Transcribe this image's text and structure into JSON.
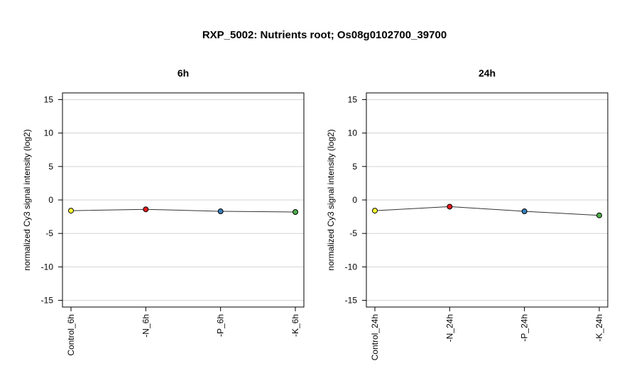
{
  "title": "RXP_5002: Nutrients root; Os08g0102700_39700",
  "chart_data": [
    {
      "type": "line",
      "title": "6h",
      "ylabel": "normalized Cy3 signal intensity (log2)",
      "ylim": [
        -16,
        16
      ],
      "yticks": [
        15,
        10,
        5,
        0,
        -5,
        -10,
        -15
      ],
      "grid": true,
      "categories": [
        "Control_6h",
        "-N_6h",
        "-P_6h",
        "-K_6h"
      ],
      "values": [
        -1.6,
        -1.4,
        -1.7,
        -1.8
      ],
      "point_colors": [
        "#ffff33",
        "#e41a1c",
        "#377eb8",
        "#4daf4a"
      ]
    },
    {
      "type": "line",
      "title": "24h",
      "ylabel": "normalized Cy3 signal intensity (log2)",
      "ylim": [
        -16,
        16
      ],
      "yticks": [
        15,
        10,
        5,
        0,
        -5,
        -10,
        -15
      ],
      "grid": true,
      "categories": [
        "Control_24h",
        "-N_24h",
        "-P_24h",
        "-K_24h"
      ],
      "values": [
        -1.6,
        -1.0,
        -1.7,
        -2.3
      ],
      "point_colors": [
        "#ffff33",
        "#e41a1c",
        "#377eb8",
        "#4daf4a"
      ]
    }
  ]
}
